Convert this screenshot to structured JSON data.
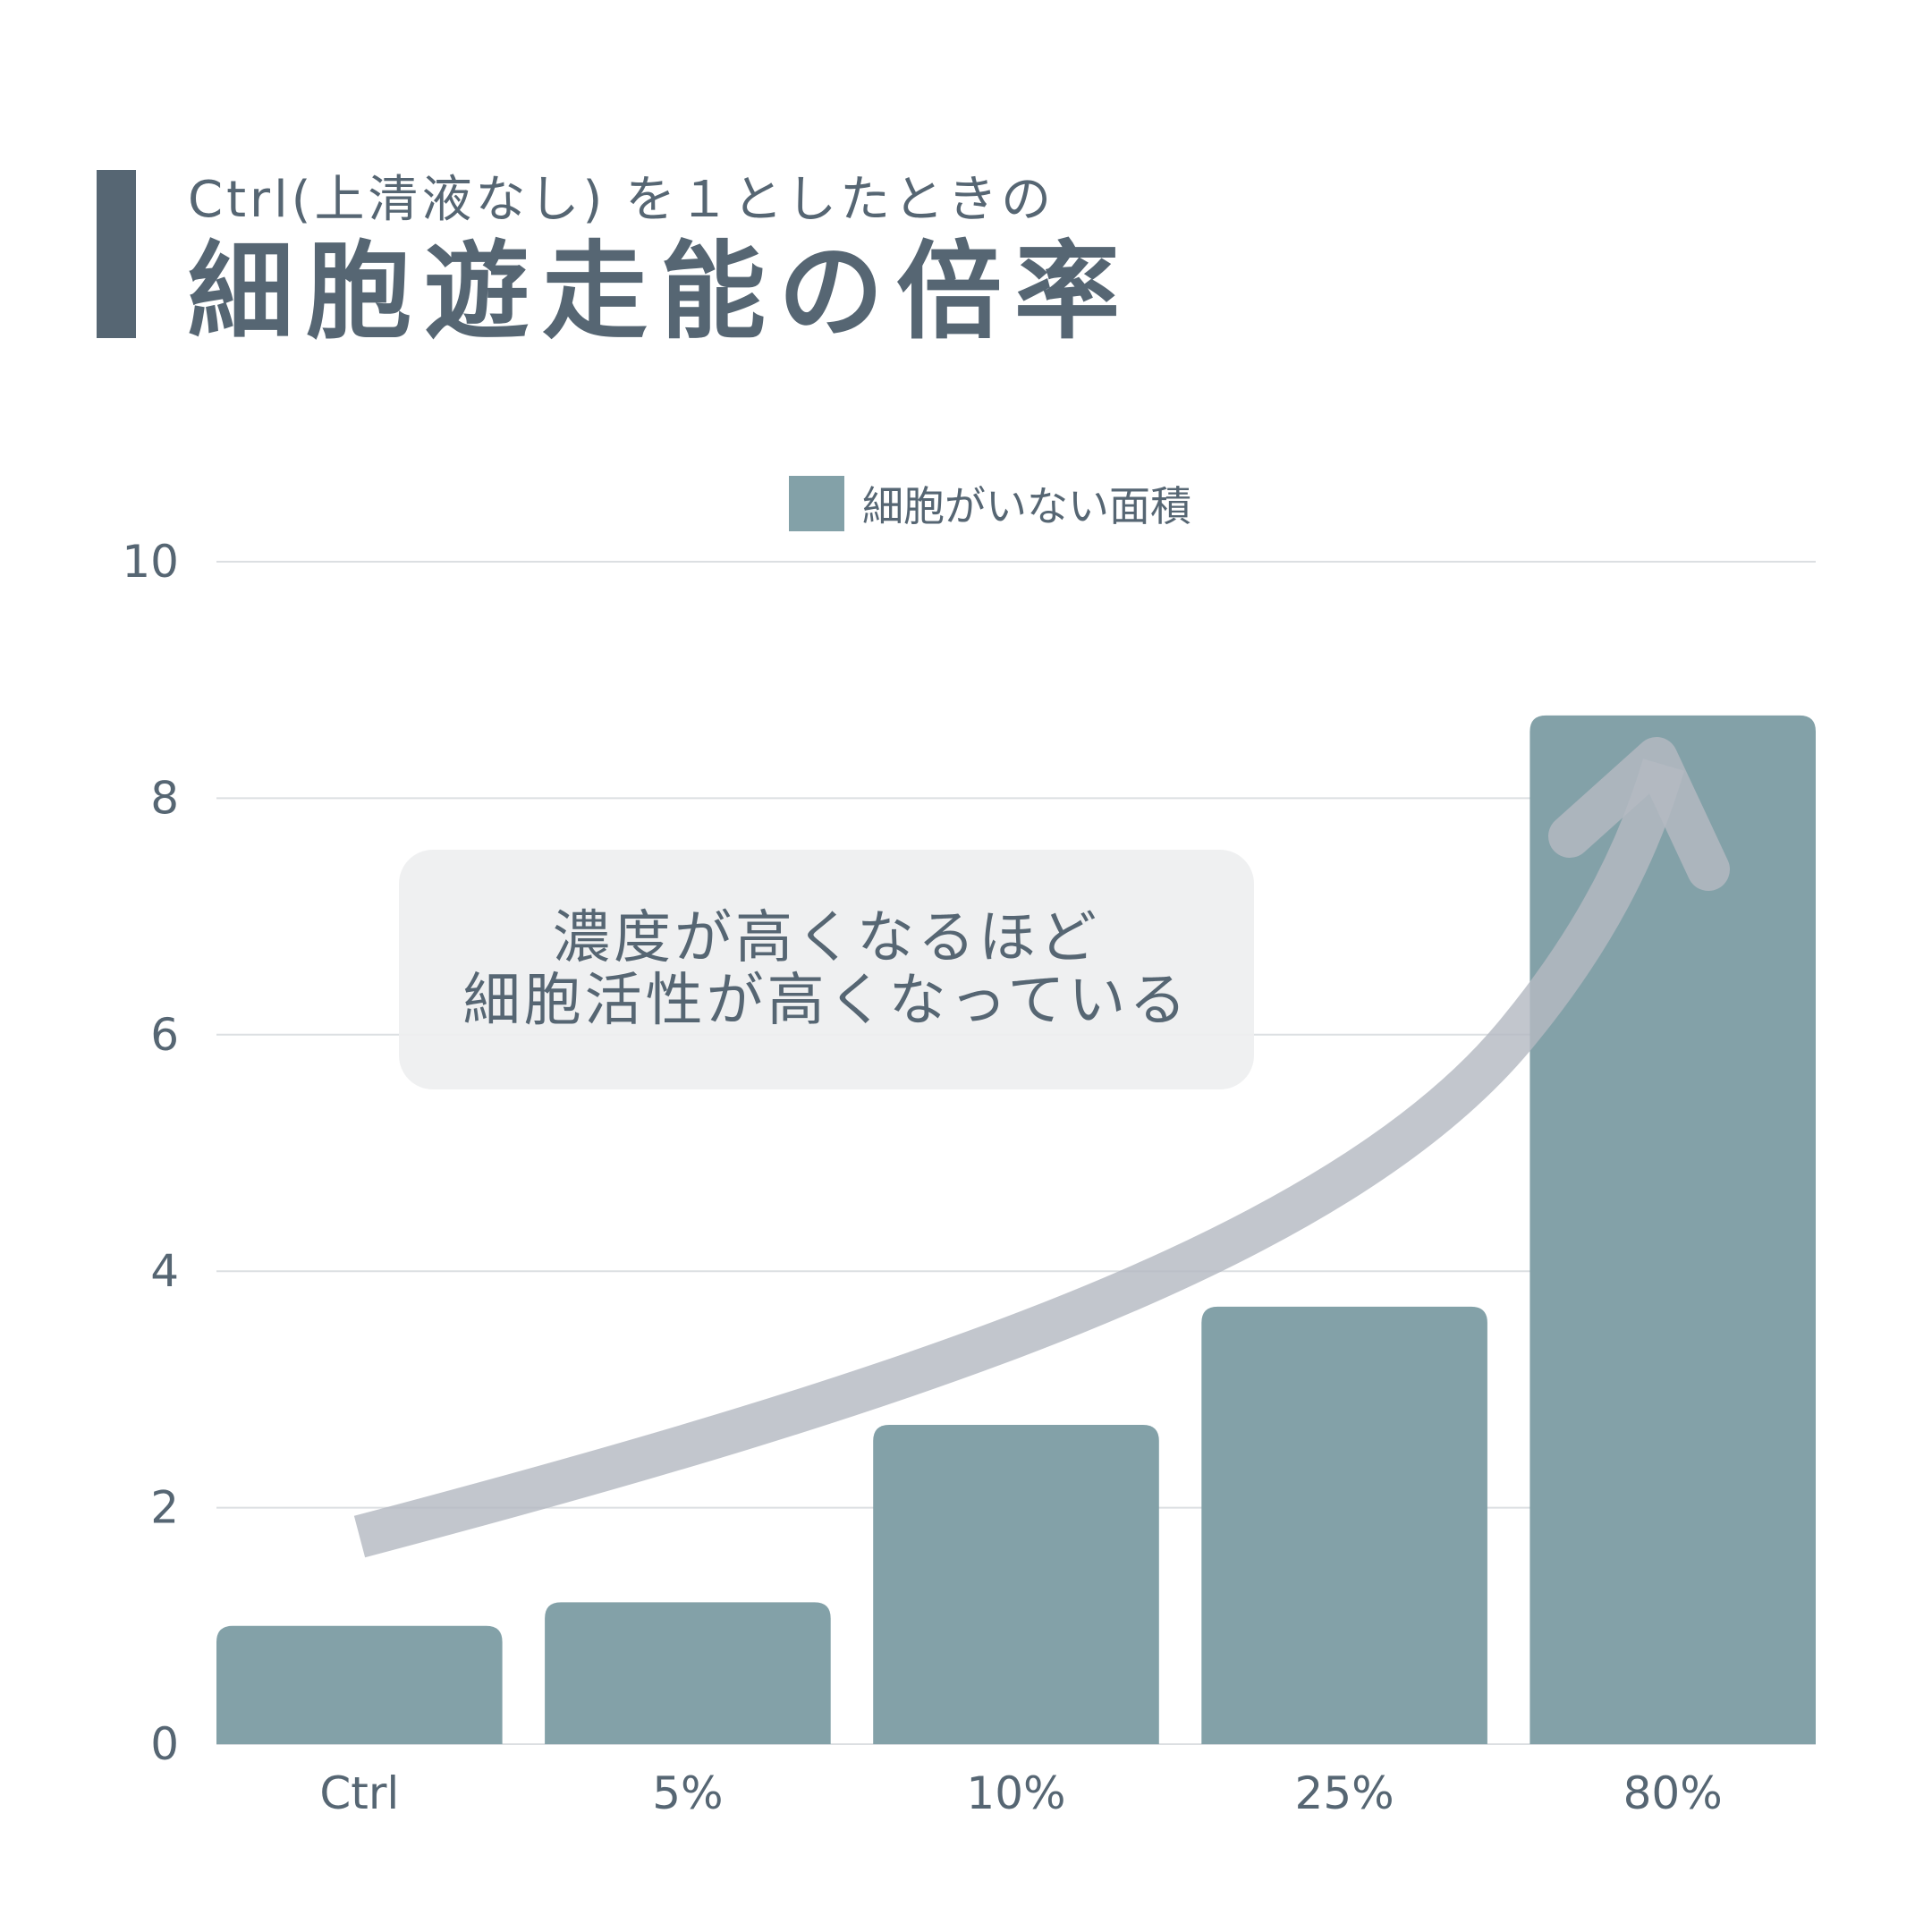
{
  "header": {
    "subtitle": "Ctrl(上清液なし) を１としたときの",
    "title": "細胞遊走能の倍率"
  },
  "colors": {
    "bar": "#83a1a8",
    "text": "#566673",
    "grid": "#dcdfe2",
    "arrow": "#b4bac2",
    "callout_bg": "#eeeff0"
  },
  "annotation": {
    "line1": "濃度が高くなるほど",
    "line2": "細胞活性が高くなっている"
  },
  "chart_data": {
    "type": "bar",
    "categories": [
      "Ctrl",
      "5%",
      "10%",
      "25%",
      "80%"
    ],
    "series": [
      {
        "name": "細胞がいない面積",
        "values": [
          1.0,
          1.2,
          2.7,
          3.7,
          8.7
        ]
      }
    ],
    "ylim": [
      0,
      10
    ],
    "yticks": [
      "0",
      "2",
      "4",
      "6",
      "8",
      "10"
    ],
    "grid": true,
    "legend_position": "top-center"
  }
}
